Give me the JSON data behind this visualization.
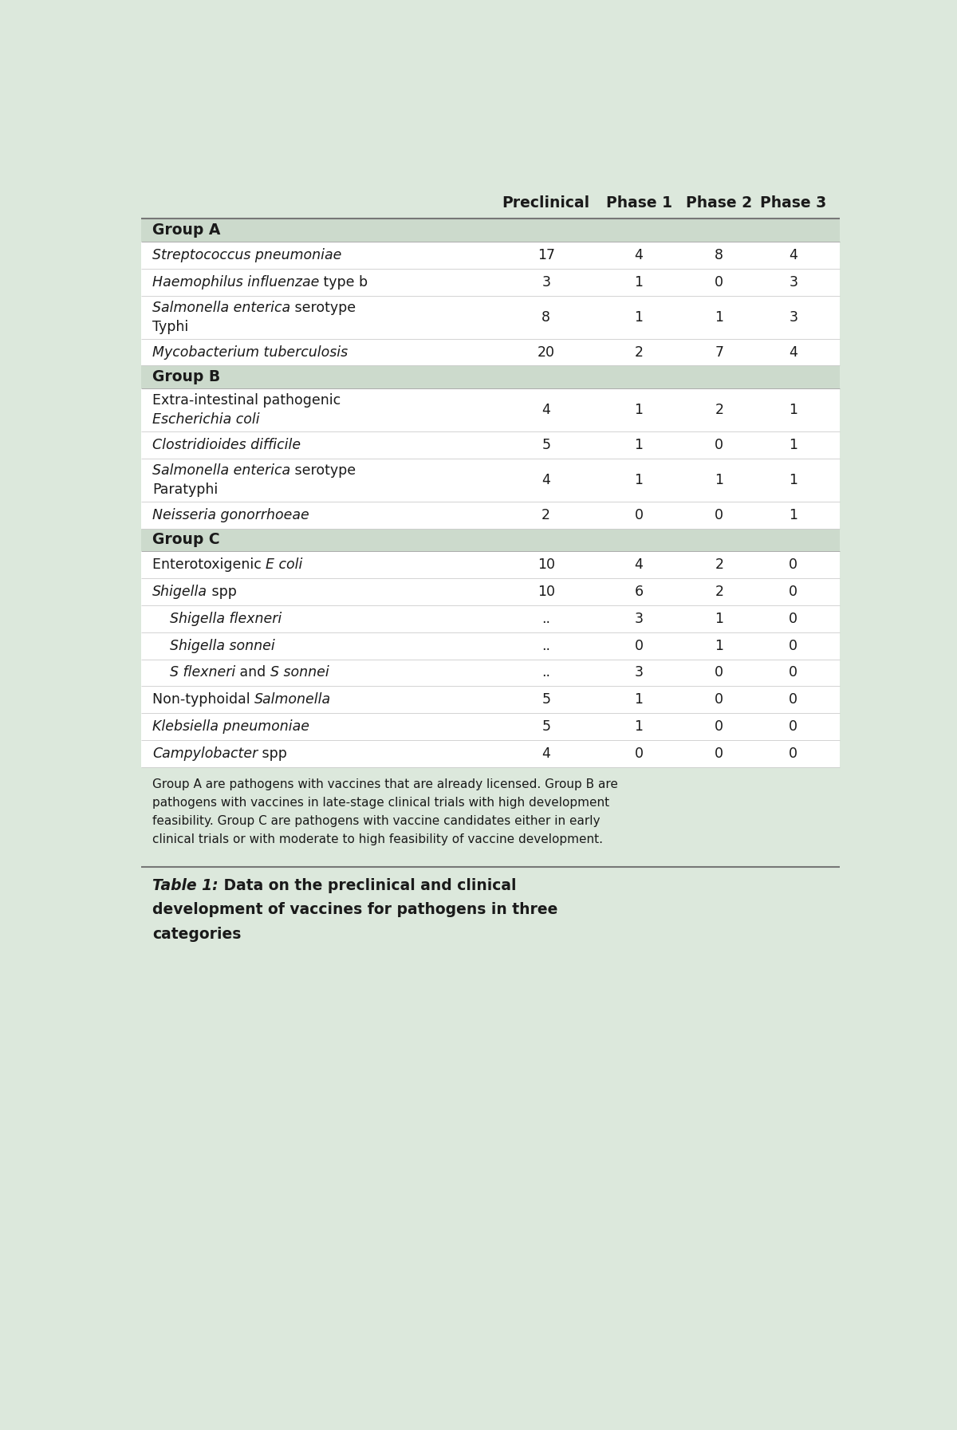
{
  "background_color": "#dce8dc",
  "white_row_bg": "#ffffff",
  "group_row_bg": "#ccdacc",
  "header_bg": "#dce8dc",
  "text_color": "#1a1a1a",
  "header_cols": [
    "Preclinical",
    "Phase 1",
    "Phase 2",
    "Phase 3"
  ],
  "rows": [
    {
      "type": "header"
    },
    {
      "type": "group",
      "label": "Group A"
    },
    {
      "type": "data",
      "line1": [
        [
          "Streptococcus pneumoniae",
          true
        ]
      ],
      "line2": null,
      "indent": false,
      "values": [
        "17",
        "4",
        "8",
        "4"
      ]
    },
    {
      "type": "data",
      "line1": [
        [
          "Haemophilus influenzae",
          true
        ],
        [
          " type b",
          false
        ]
      ],
      "line2": null,
      "indent": false,
      "values": [
        "3",
        "1",
        "0",
        "3"
      ]
    },
    {
      "type": "data",
      "line1": [
        [
          "Salmonella enterica",
          true
        ],
        [
          " serotype",
          false
        ]
      ],
      "line2": [
        [
          "Typhi",
          false
        ]
      ],
      "indent": false,
      "values": [
        "8",
        "1",
        "1",
        "3"
      ]
    },
    {
      "type": "data",
      "line1": [
        [
          "Mycobacterium tuberculosis",
          true
        ]
      ],
      "line2": null,
      "indent": false,
      "values": [
        "20",
        "2",
        "7",
        "4"
      ]
    },
    {
      "type": "group",
      "label": "Group B"
    },
    {
      "type": "data",
      "line1": [
        [
          "Extra-intestinal pathogenic",
          false
        ]
      ],
      "line2": [
        [
          "Escherichia coli",
          true
        ]
      ],
      "indent": false,
      "values": [
        "4",
        "1",
        "2",
        "1"
      ]
    },
    {
      "type": "data",
      "line1": [
        [
          "Clostridioides difficile",
          true
        ]
      ],
      "line2": null,
      "indent": false,
      "values": [
        "5",
        "1",
        "0",
        "1"
      ]
    },
    {
      "type": "data",
      "line1": [
        [
          "Salmonella enterica",
          true
        ],
        [
          " serotype",
          false
        ]
      ],
      "line2": [
        [
          "Paratyphi",
          false
        ]
      ],
      "indent": false,
      "values": [
        "4",
        "1",
        "1",
        "1"
      ]
    },
    {
      "type": "data",
      "line1": [
        [
          "Neisseria gonorrhoeae",
          true
        ]
      ],
      "line2": null,
      "indent": false,
      "values": [
        "2",
        "0",
        "0",
        "1"
      ]
    },
    {
      "type": "group",
      "label": "Group C"
    },
    {
      "type": "data",
      "line1": [
        [
          "Enterotoxigenic ",
          false
        ],
        [
          "E coli",
          true
        ]
      ],
      "line2": null,
      "indent": false,
      "values": [
        "10",
        "4",
        "2",
        "0"
      ]
    },
    {
      "type": "data",
      "line1": [
        [
          "Shigella",
          true
        ],
        [
          " spp",
          false
        ]
      ],
      "line2": null,
      "indent": false,
      "values": [
        "10",
        "6",
        "2",
        "0"
      ]
    },
    {
      "type": "data",
      "line1": [
        [
          "Shigella flexneri",
          true
        ]
      ],
      "line2": null,
      "indent": true,
      "values": [
        "..",
        "3",
        "1",
        "0"
      ]
    },
    {
      "type": "data",
      "line1": [
        [
          "Shigella sonnei",
          true
        ]
      ],
      "line2": null,
      "indent": true,
      "values": [
        "..",
        "0",
        "1",
        "0"
      ]
    },
    {
      "type": "data",
      "line1": [
        [
          "S flexneri",
          true
        ],
        [
          " and ",
          false
        ],
        [
          "S sonnei",
          true
        ]
      ],
      "line2": null,
      "indent": true,
      "values": [
        "..",
        "3",
        "0",
        "0"
      ]
    },
    {
      "type": "data",
      "line1": [
        [
          "Non-typhoidal ",
          false
        ],
        [
          "Salmonella",
          true
        ]
      ],
      "line2": null,
      "indent": false,
      "values": [
        "5",
        "1",
        "0",
        "0"
      ]
    },
    {
      "type": "data",
      "line1": [
        [
          "Klebsiella pneumoniae",
          true
        ]
      ],
      "line2": null,
      "indent": false,
      "values": [
        "5",
        "1",
        "0",
        "0"
      ]
    },
    {
      "type": "data",
      "line1": [
        [
          "Campylobacter",
          true
        ],
        [
          " spp",
          false
        ]
      ],
      "line2": null,
      "indent": false,
      "values": [
        "4",
        "0",
        "0",
        "0"
      ]
    },
    {
      "type": "footnote",
      "text": "Group A are pathogens with vaccines that are already licensed. Group B are pathogens with vaccines in late-stage clinical trials with high development feasibility. Group C are pathogens with vaccine candidates either in early clinical trials or with moderate to high feasibility of vaccine development."
    },
    {
      "type": "caption",
      "bold": "Table 1:",
      "normal": " Data on the preclinical and clinical development of vaccines for pathogens in three categories"
    }
  ]
}
